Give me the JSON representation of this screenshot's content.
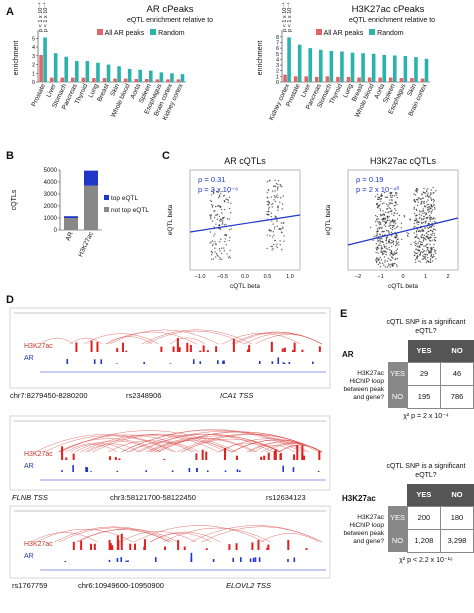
{
  "panels": {
    "A": "A",
    "B": "B",
    "C": "C",
    "D": "D",
    "E": "E"
  },
  "panelA": {
    "legend_title": "eQTL enrichment relative to",
    "legend_items": [
      "All AR peaks",
      "Random"
    ],
    "colors": {
      "all_ar": "#e06666",
      "random": "#2ab3ac"
    },
    "pvals": [
      "p < 1 x 10⁻⁴",
      "p < 1 x 10⁻⁴"
    ],
    "ylabel": "enrichment",
    "yticks": [
      "0",
      "1",
      "2",
      "3",
      "4",
      "5"
    ],
    "yticks_right": [
      "0",
      "1",
      "2",
      "3",
      "4",
      "5",
      "6",
      "7",
      "8"
    ]
  },
  "panelE": {
    "question": "cQTL SNP is a significant eQTL?",
    "yes": "YES",
    "no": "NO",
    "row_label": "H3K27ac HiChIP loop between peak and gene?",
    "ar": {
      "label": "AR",
      "cells": [
        [
          "29",
          "46"
        ],
        [
          "195",
          "786"
        ]
      ],
      "p": "χ² p = 2 x 10⁻⁴"
    },
    "h3": {
      "label": "H3K27ac",
      "cells": [
        [
          "200",
          "180"
        ],
        [
          "1,208",
          "3,298"
        ]
      ],
      "p": "χ² p < 2.2 x 10⁻¹⁶"
    }
  },
  "panelB": {
    "ylabel": "cQTLs",
    "yticks": [
      "0",
      "1000",
      "2000",
      "3000",
      "4000",
      "5000"
    ],
    "categories": [
      "AR",
      "H3K27ac"
    ],
    "legend": [
      "top eQTL",
      "not top eQTL"
    ],
    "colors": {
      "top": "#1f36c9",
      "not_top": "#888888"
    }
  },
  "panelC": {
    "left": {
      "title": "AR cQTLs",
      "rho": "ρ = 0.31",
      "p": "p = 3 x 10⁻⁶",
      "xlabel": "cQTL beta",
      "ylabel": "eQTL beta",
      "xticks": [
        "−1.0",
        "−0.5",
        "0.0",
        "0.5",
        "1.0"
      ]
    },
    "right": {
      "title": "H3K27ac cQTLs",
      "rho": "ρ = 0.19",
      "p": "p = 2 x 10⁻⁴⁰",
      "xlabel": "cQTL beta",
      "ylabel": "eQTL beta",
      "xticks": [
        "−2",
        "−1",
        "0",
        "1",
        "2"
      ]
    }
  },
  "panelD": {
    "tracks": [
      {
        "h3": "H3K27ac",
        "ar": "AR",
        "labels": [
          "chr7:8279450-8280200",
          "rs2348906",
          "ICA1 TSS"
        ]
      },
      {
        "h3": "H3K27ac",
        "ar": "AR",
        "labels": [
          "FLNB TSS",
          "chr3:58121700-58122450",
          "rs12634123"
        ]
      },
      {
        "h3": "H3K27ac",
        "ar": "AR",
        "labels": [
          "rs1767759",
          "chr6:10949600-10950900",
          "ELOVL2 TSS"
        ]
      }
    ]
  },
  "chart_data": [
    {
      "type": "bar",
      "title": "AR cPeaks",
      "ylabel": "enrichment",
      "categories": [
        "Prostate",
        "Liver",
        "Stomach",
        "Pancreas",
        "Thyroid",
        "Lung",
        "Breast",
        "Skin",
        "Whole blood",
        "Aorta",
        "Spleen",
        "Esophagus",
        "Brain cortex",
        "Kidney cortex"
      ],
      "series": [
        {
          "name": "All AR peaks",
          "values": [
            3.1,
            0.5,
            0.5,
            0.5,
            0.5,
            0.45,
            0.45,
            0.4,
            0.4,
            0.35,
            0.35,
            0.3,
            0.3,
            0.3
          ]
        },
        {
          "name": "Random",
          "values": [
            5.1,
            3.3,
            2.9,
            2.4,
            2.4,
            2.2,
            2.0,
            1.8,
            1.5,
            1.4,
            1.3,
            1.1,
            1.0,
            0.9
          ]
        }
      ],
      "ylim": [
        0,
        5.5
      ]
    },
    {
      "type": "bar",
      "title": "H3K27ac cPeaks",
      "ylabel": "enrichment",
      "categories": [
        "Kidney cortex",
        "Prostate",
        "Liver",
        "Pancreas",
        "Stomach",
        "Thyroid",
        "Lung",
        "Breast",
        "Whole blood",
        "Aorta",
        "Spleen",
        "Esophagus",
        "Skin",
        "Brain cortex"
      ],
      "series": [
        {
          "name": "All AR peaks",
          "values": [
            1.3,
            1.0,
            1.0,
            0.9,
            1.0,
            0.9,
            0.9,
            0.8,
            0.8,
            0.8,
            0.8,
            0.7,
            0.7,
            0.6
          ]
        },
        {
          "name": "Random",
          "values": [
            7.9,
            6.6,
            6.0,
            5.7,
            5.5,
            5.4,
            5.2,
            5.1,
            5.0,
            4.8,
            4.7,
            4.6,
            4.4,
            4.1
          ]
        }
      ],
      "ylim": [
        0,
        8.5
      ]
    },
    {
      "type": "bar",
      "ylabel": "cQTLs",
      "categories": [
        "AR",
        "H3K27ac"
      ],
      "series": [
        {
          "name": "top eQTL",
          "values": [
            150,
            1250
          ]
        },
        {
          "name": "not top eQTL",
          "values": [
            1000,
            3700
          ]
        }
      ],
      "ylim": [
        0,
        5000
      ]
    }
  ]
}
